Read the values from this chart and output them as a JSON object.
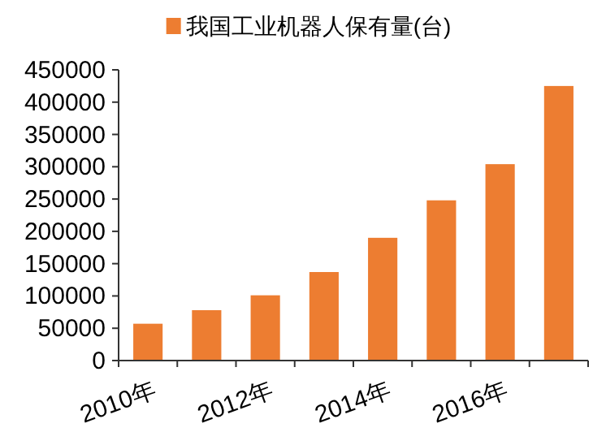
{
  "chart_data": {
    "type": "bar",
    "categories": [
      "2010年",
      null,
      "2012年",
      null,
      "2014年",
      null,
      "2016年",
      null
    ],
    "series": [
      {
        "name": "我国工业机器人保有量(台)",
        "color": "#ed7d31",
        "values": [
          57000,
          78000,
          101000,
          137000,
          190000,
          248000,
          304000,
          425000
        ]
      }
    ],
    "ylim": [
      0,
      450000
    ],
    "yticks": [
      0,
      50000,
      100000,
      150000,
      200000,
      250000,
      300000,
      350000,
      400000,
      450000
    ],
    "legend": "top"
  }
}
